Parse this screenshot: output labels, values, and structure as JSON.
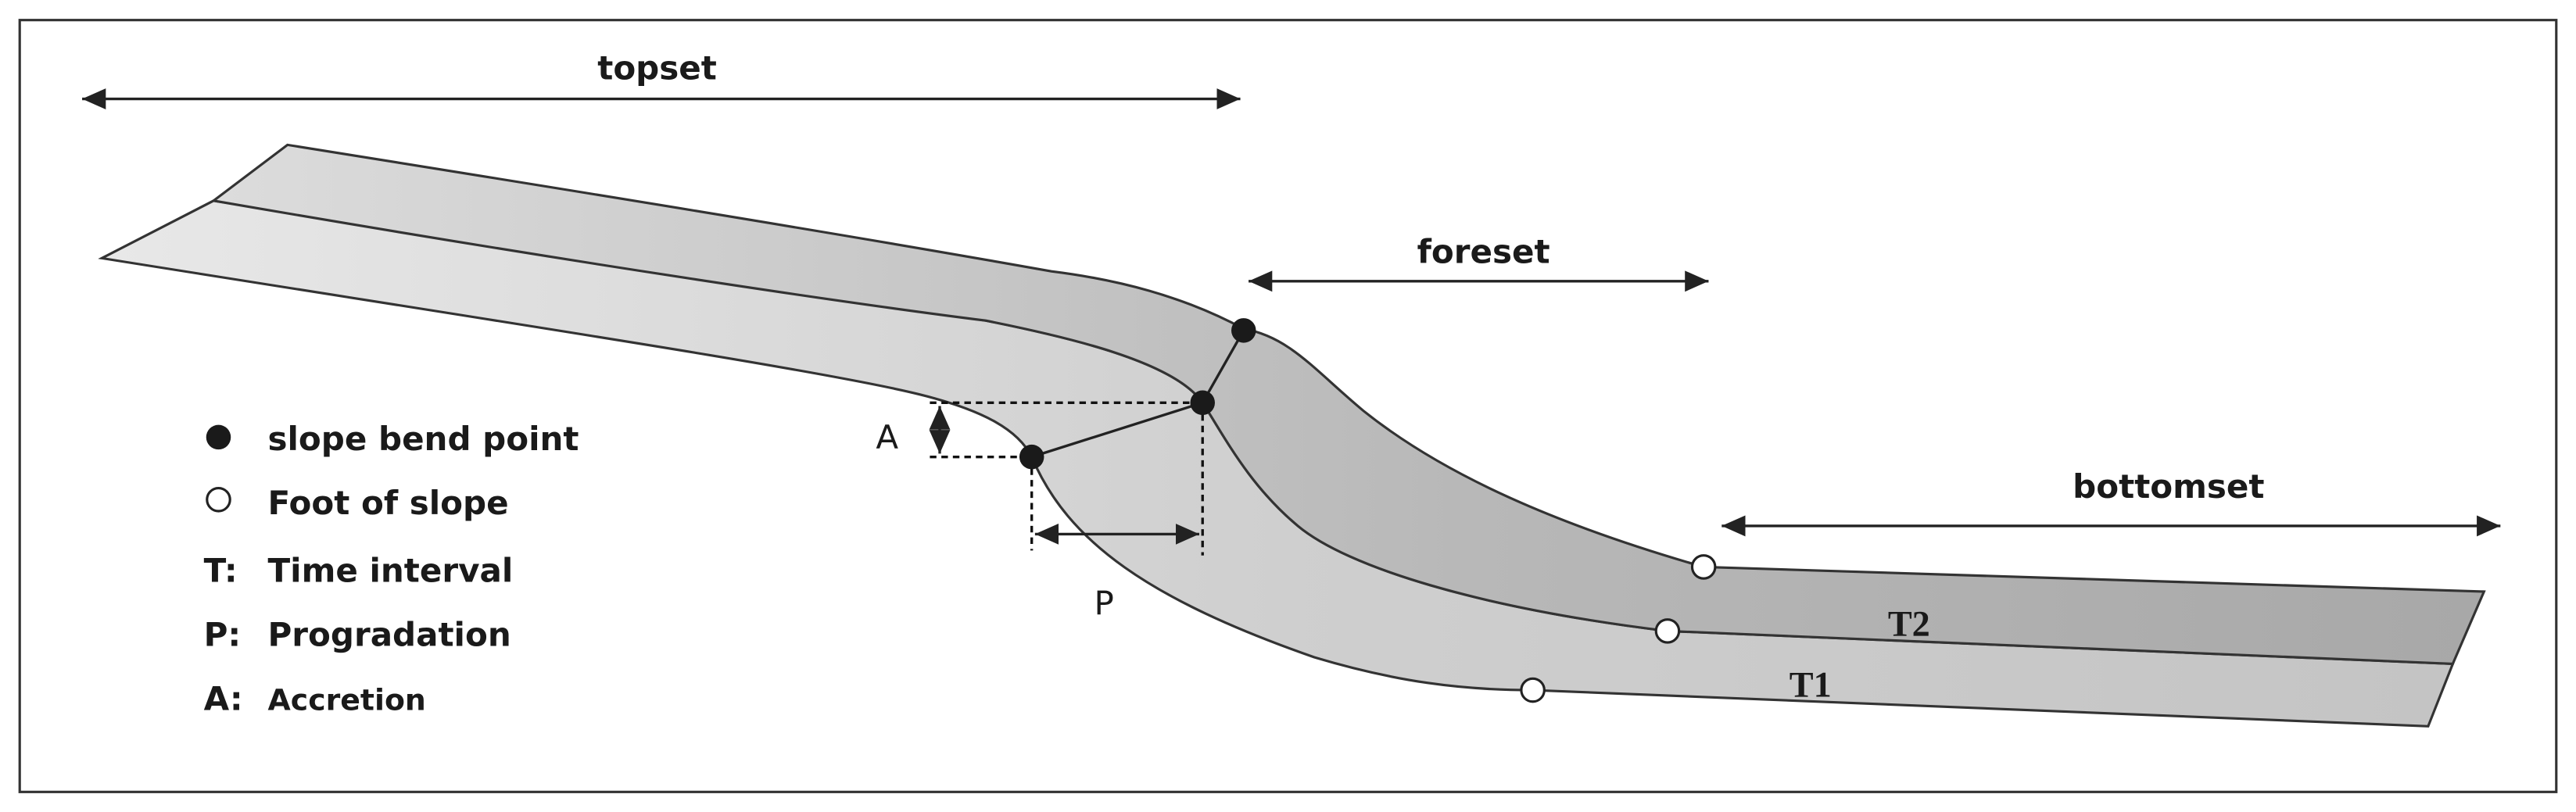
{
  "labels": {
    "topset": "topset",
    "foreset": "foreset",
    "bottomset": "bottomset",
    "accretion": "A",
    "progradation": "P",
    "t2": "T2",
    "t1": "T1"
  },
  "legend": [
    {
      "text": "slope bend point"
    },
    {
      "text": "Foot of slope"
    },
    {
      "key": "T:",
      "text": "Time interval"
    },
    {
      "key": "P:",
      "text": "Progradation"
    },
    {
      "key": "A:",
      "text": "Accretion"
    }
  ]
}
